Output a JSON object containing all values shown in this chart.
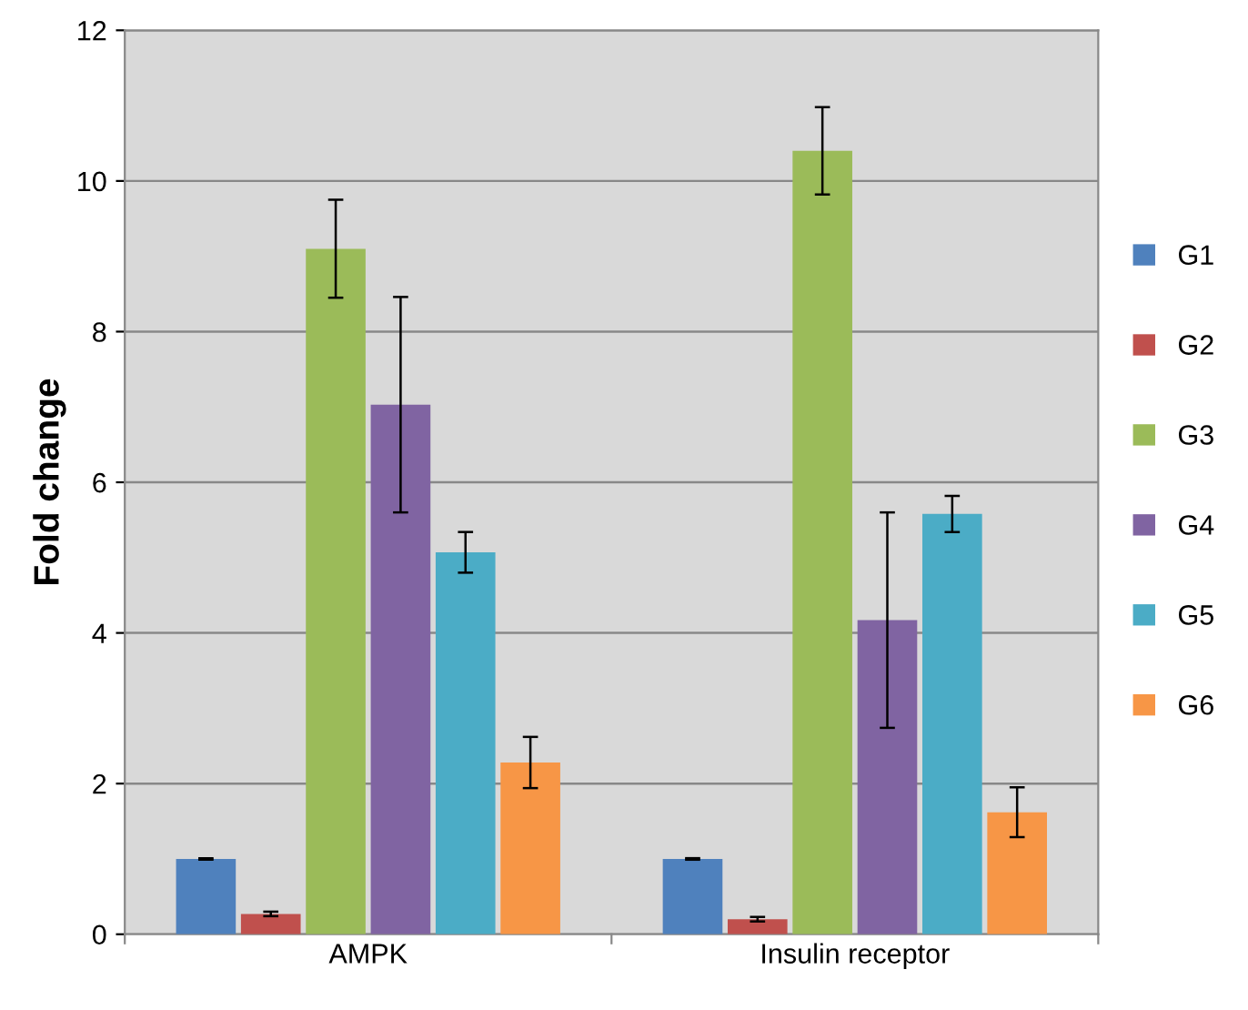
{
  "chart_data": {
    "type": "bar",
    "ylabel": "Fold change",
    "categories": [
      "AMPK",
      "Insulin receptor"
    ],
    "series": [
      {
        "name": "G1",
        "color": "#4f81bd",
        "values": [
          1.0,
          1.0
        ],
        "errors": [
          0.01,
          0.01
        ]
      },
      {
        "name": "G2",
        "color": "#c0504d",
        "values": [
          0.27,
          0.2
        ],
        "errors": [
          0.03,
          0.03
        ]
      },
      {
        "name": "G3",
        "color": "#9bbb59",
        "values": [
          9.1,
          10.4
        ],
        "errors": [
          0.65,
          0.58
        ]
      },
      {
        "name": "G4",
        "color": "#8064a2",
        "values": [
          7.03,
          4.17
        ],
        "errors": [
          1.43,
          1.43
        ]
      },
      {
        "name": "G5",
        "color": "#4bacc6",
        "values": [
          5.07,
          5.58
        ],
        "errors": [
          0.27,
          0.24
        ]
      },
      {
        "name": "G6",
        "color": "#f79646",
        "values": [
          2.28,
          1.62
        ],
        "errors": [
          0.34,
          0.33
        ]
      }
    ],
    "ylim": [
      0,
      12
    ],
    "yticks": [
      0,
      2,
      4,
      6,
      8,
      10,
      12
    ],
    "grid": "y",
    "legend": "right"
  }
}
